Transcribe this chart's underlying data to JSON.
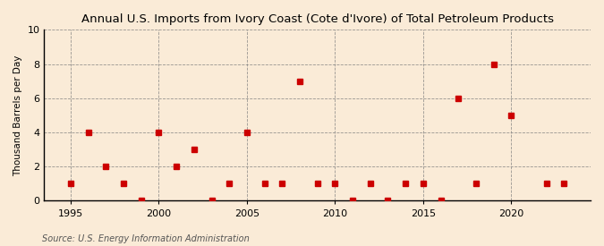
{
  "title": "Annual U.S. Imports from Ivory Coast (Cote d'Ivore) of Total Petroleum Products",
  "ylabel": "Thousand Barrels per Day",
  "source": "Source: U.S. Energy Information Administration",
  "background_color": "#faebd7",
  "marker_color": "#cc0000",
  "years": [
    1995,
    1996,
    1997,
    1998,
    1999,
    2000,
    2001,
    2002,
    2003,
    2004,
    2005,
    2006,
    2007,
    2008,
    2009,
    2010,
    2011,
    2012,
    2013,
    2014,
    2015,
    2016,
    2017,
    2018,
    2019,
    2020,
    2022,
    2023
  ],
  "values": [
    1,
    4,
    2,
    1,
    0,
    4,
    2,
    3,
    0,
    1,
    4,
    1,
    1,
    7,
    1,
    1,
    0,
    1,
    0,
    1,
    1,
    0,
    6,
    1,
    8,
    5,
    1,
    1
  ],
  "xlim": [
    1993.5,
    2024.5
  ],
  "ylim": [
    0,
    10
  ],
  "xticks": [
    1995,
    2000,
    2005,
    2010,
    2015,
    2020
  ],
  "yticks": [
    0,
    2,
    4,
    6,
    8,
    10
  ],
  "title_fontsize": 9.5,
  "label_fontsize": 7.5,
  "source_fontsize": 7,
  "tick_fontsize": 8,
  "marker_size": 4
}
